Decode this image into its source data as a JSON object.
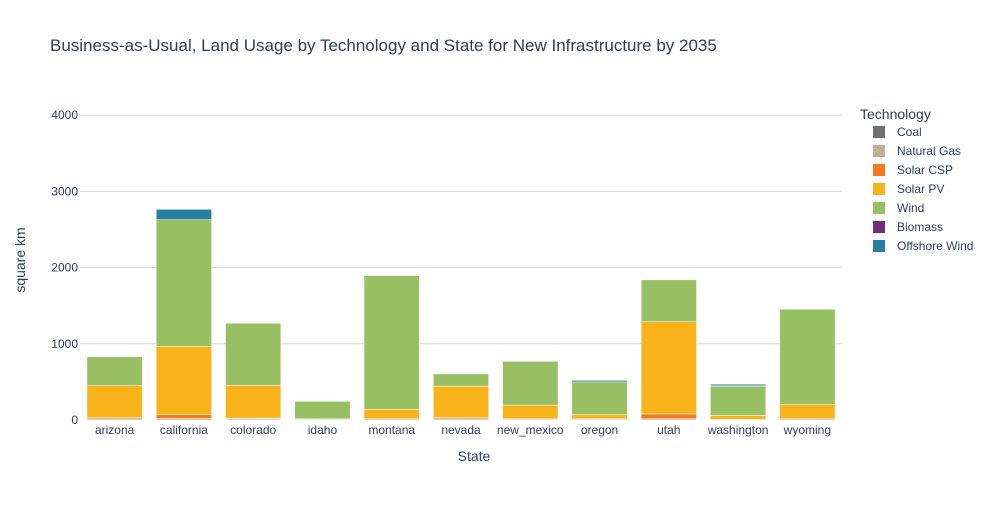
{
  "chart_data": {
    "type": "bar",
    "stacked": true,
    "title": "Business-as-Usual, Land Usage by Technology and State for New Infrastructure by 2035",
    "xlabel": "State",
    "ylabel": "square km",
    "ylim": [
      0,
      4200
    ],
    "yticks": [
      0,
      1000,
      2000,
      3000,
      4000
    ],
    "grid": "horizontal",
    "legend_title": "Technology",
    "legend_position": "right",
    "categories": [
      "arizona",
      "california",
      "colorado",
      "idaho",
      "montana",
      "nevada",
      "new_mexico",
      "oregon",
      "utah",
      "washington",
      "wyoming"
    ],
    "series": [
      {
        "name": "Coal",
        "color": "#707070",
        "values": [
          0,
          0,
          0,
          0,
          0,
          0,
          0,
          0,
          0,
          0,
          0
        ]
      },
      {
        "name": "Natural Gas",
        "color": "#bfb093",
        "values": [
          15,
          20,
          15,
          10,
          15,
          15,
          10,
          10,
          15,
          10,
          15
        ]
      },
      {
        "name": "Solar CSP",
        "color": "#f37a1f",
        "values": [
          15,
          50,
          10,
          0,
          0,
          15,
          5,
          5,
          65,
          0,
          0
        ]
      },
      {
        "name": "Solar PV",
        "color": "#f7b319",
        "values": [
          420,
          895,
          430,
          5,
          125,
          415,
          180,
          55,
          1210,
          50,
          185
        ]
      },
      {
        "name": "Wind",
        "color": "#97c062",
        "values": [
          380,
          1665,
          815,
          230,
          1755,
          160,
          575,
          430,
          550,
          385,
          1255
        ]
      },
      {
        "name": "Biomass",
        "color": "#6d2e7d",
        "values": [
          0,
          0,
          0,
          0,
          0,
          0,
          0,
          0,
          0,
          5,
          0
        ]
      },
      {
        "name": "Offshore Wind",
        "color": "#25809f",
        "values": [
          0,
          135,
          0,
          0,
          0,
          0,
          0,
          20,
          0,
          20,
          0
        ]
      }
    ]
  }
}
